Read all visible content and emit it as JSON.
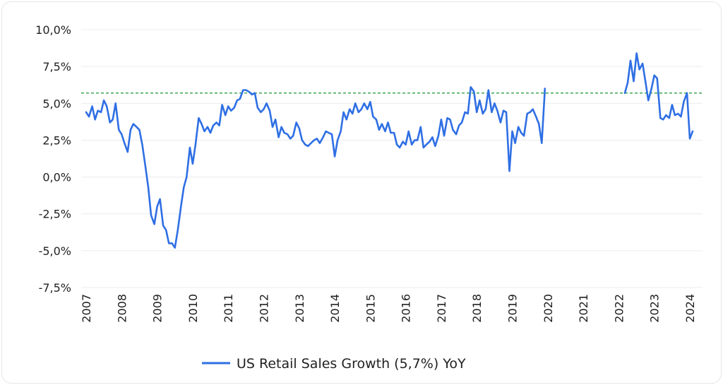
{
  "chart_data": {
    "type": "line",
    "title": "",
    "xlabel": "",
    "ylabel": "",
    "ylim": [
      -7.5,
      10.0
    ],
    "xlim": [
      2007.0,
      2024.25
    ],
    "y_ticks": [
      -7.5,
      -5.0,
      -2.5,
      0.0,
      2.5,
      5.0,
      7.5,
      10.0
    ],
    "y_tick_labels": [
      "-7,5%",
      "-5,0%",
      "-2,5%",
      "0,0%",
      "2,5%",
      "5,0%",
      "7,5%",
      "10,0%"
    ],
    "x_ticks": [
      2007,
      2008,
      2009,
      2010,
      2011,
      2012,
      2013,
      2014,
      2015,
      2016,
      2017,
      2018,
      2019,
      2020,
      2021,
      2022,
      2023,
      2024
    ],
    "x_tick_labels": [
      "2007",
      "2008",
      "2009",
      "2010",
      "2011",
      "2012",
      "2013",
      "2014",
      "2015",
      "2016",
      "2017",
      "2018",
      "2019",
      "2020",
      "2021",
      "2022",
      "2023",
      "2024"
    ],
    "legend": "bottom",
    "colors": {
      "series": "#2f6fe4",
      "reference": "#2ea043",
      "grid": "#ececec"
    },
    "reference_line": {
      "value": 5.7,
      "style": "dashed"
    },
    "series": [
      {
        "name": "US Retail Sales Growth (5,7%) YoY",
        "segments": [
          [
            [
              2007.0,
              4.4
            ],
            [
              2007.08,
              4.1
            ],
            [
              2007.17,
              4.8
            ],
            [
              2007.25,
              3.9
            ],
            [
              2007.33,
              4.5
            ],
            [
              2007.42,
              4.4
            ],
            [
              2007.5,
              5.2
            ],
            [
              2007.58,
              4.8
            ],
            [
              2007.67,
              3.7
            ],
            [
              2007.75,
              3.9
            ],
            [
              2007.83,
              5.0
            ],
            [
              2007.92,
              3.2
            ],
            [
              2008.0,
              2.9
            ],
            [
              2008.08,
              2.3
            ],
            [
              2008.17,
              1.7
            ],
            [
              2008.25,
              3.2
            ],
            [
              2008.33,
              3.6
            ],
            [
              2008.42,
              3.4
            ],
            [
              2008.5,
              3.2
            ],
            [
              2008.58,
              2.2
            ],
            [
              2008.67,
              0.7
            ],
            [
              2008.75,
              -0.7
            ],
            [
              2008.83,
              -2.6
            ],
            [
              2008.92,
              -3.2
            ],
            [
              2009.0,
              -2.0
            ],
            [
              2009.08,
              -1.5
            ],
            [
              2009.17,
              -3.3
            ],
            [
              2009.25,
              -3.6
            ],
            [
              2009.33,
              -4.5
            ],
            [
              2009.42,
              -4.5
            ],
            [
              2009.5,
              -4.8
            ],
            [
              2009.58,
              -3.6
            ],
            [
              2009.67,
              -2.0
            ],
            [
              2009.75,
              -0.7
            ],
            [
              2009.83,
              0.0
            ],
            [
              2009.92,
              2.0
            ],
            [
              2010.0,
              0.9
            ],
            [
              2010.08,
              2.2
            ],
            [
              2010.17,
              4.0
            ],
            [
              2010.25,
              3.6
            ],
            [
              2010.33,
              3.1
            ],
            [
              2010.42,
              3.4
            ],
            [
              2010.5,
              3.0
            ],
            [
              2010.58,
              3.5
            ],
            [
              2010.67,
              3.7
            ],
            [
              2010.75,
              3.5
            ],
            [
              2010.83,
              4.9
            ],
            [
              2010.92,
              4.2
            ],
            [
              2011.0,
              4.8
            ],
            [
              2011.08,
              4.5
            ],
            [
              2011.17,
              4.7
            ],
            [
              2011.25,
              5.2
            ],
            [
              2011.33,
              5.3
            ],
            [
              2011.42,
              5.9
            ],
            [
              2011.5,
              5.9
            ],
            [
              2011.58,
              5.8
            ],
            [
              2011.67,
              5.6
            ],
            [
              2011.75,
              5.7
            ],
            [
              2011.83,
              4.7
            ],
            [
              2011.92,
              4.4
            ],
            [
              2012.0,
              4.6
            ],
            [
              2012.08,
              5.0
            ],
            [
              2012.17,
              4.5
            ],
            [
              2012.25,
              3.4
            ],
            [
              2012.33,
              3.9
            ],
            [
              2012.42,
              2.7
            ],
            [
              2012.5,
              3.4
            ],
            [
              2012.58,
              3.0
            ],
            [
              2012.67,
              2.9
            ],
            [
              2012.75,
              2.6
            ],
            [
              2012.83,
              2.8
            ],
            [
              2012.92,
              3.7
            ],
            [
              2013.0,
              3.3
            ],
            [
              2013.08,
              2.5
            ],
            [
              2013.17,
              2.2
            ],
            [
              2013.25,
              2.1
            ],
            [
              2013.33,
              2.3
            ],
            [
              2013.42,
              2.5
            ],
            [
              2013.5,
              2.6
            ],
            [
              2013.58,
              2.3
            ],
            [
              2013.67,
              2.7
            ],
            [
              2013.75,
              3.1
            ],
            [
              2013.83,
              3.0
            ],
            [
              2013.92,
              2.9
            ],
            [
              2014.0,
              1.4
            ],
            [
              2014.08,
              2.5
            ],
            [
              2014.17,
              3.1
            ],
            [
              2014.25,
              4.4
            ],
            [
              2014.33,
              3.9
            ],
            [
              2014.42,
              4.6
            ],
            [
              2014.5,
              4.3
            ],
            [
              2014.58,
              5.0
            ],
            [
              2014.67,
              4.4
            ],
            [
              2014.75,
              4.6
            ],
            [
              2014.83,
              5.0
            ],
            [
              2014.92,
              4.6
            ],
            [
              2015.0,
              5.1
            ],
            [
              2015.08,
              4.1
            ],
            [
              2015.17,
              3.9
            ],
            [
              2015.25,
              3.2
            ],
            [
              2015.33,
              3.6
            ],
            [
              2015.42,
              3.1
            ],
            [
              2015.5,
              3.7
            ],
            [
              2015.58,
              3.0
            ],
            [
              2015.67,
              3.0
            ],
            [
              2015.75,
              2.2
            ],
            [
              2015.83,
              2.0
            ],
            [
              2015.92,
              2.4
            ],
            [
              2016.0,
              2.2
            ],
            [
              2016.08,
              3.1
            ],
            [
              2016.17,
              2.2
            ],
            [
              2016.25,
              2.5
            ],
            [
              2016.33,
              2.5
            ],
            [
              2016.42,
              3.4
            ],
            [
              2016.5,
              2.0
            ],
            [
              2016.58,
              2.2
            ],
            [
              2016.67,
              2.4
            ],
            [
              2016.75,
              2.7
            ],
            [
              2016.83,
              2.1
            ],
            [
              2016.92,
              2.8
            ],
            [
              2017.0,
              3.9
            ],
            [
              2017.08,
              2.8
            ],
            [
              2017.17,
              4.0
            ],
            [
              2017.25,
              3.9
            ],
            [
              2017.33,
              3.2
            ],
            [
              2017.42,
              2.9
            ],
            [
              2017.5,
              3.5
            ],
            [
              2017.58,
              3.7
            ],
            [
              2017.67,
              4.4
            ],
            [
              2017.75,
              4.3
            ],
            [
              2017.83,
              6.1
            ],
            [
              2017.92,
              5.8
            ],
            [
              2018.0,
              4.4
            ],
            [
              2018.08,
              5.2
            ],
            [
              2018.17,
              4.3
            ],
            [
              2018.25,
              4.6
            ],
            [
              2018.33,
              5.9
            ],
            [
              2018.42,
              4.4
            ],
            [
              2018.5,
              5.0
            ],
            [
              2018.58,
              4.5
            ],
            [
              2018.67,
              3.7
            ],
            [
              2018.75,
              4.5
            ],
            [
              2018.83,
              4.4
            ],
            [
              2018.92,
              0.4
            ],
            [
              2019.0,
              3.1
            ],
            [
              2019.08,
              2.3
            ],
            [
              2019.17,
              3.4
            ],
            [
              2019.25,
              3.0
            ],
            [
              2019.33,
              2.8
            ],
            [
              2019.42,
              4.3
            ],
            [
              2019.5,
              4.4
            ],
            [
              2019.58,
              4.6
            ],
            [
              2019.67,
              4.1
            ],
            [
              2019.75,
              3.6
            ],
            [
              2019.83,
              2.3
            ],
            [
              2019.92,
              6.0
            ]
          ],
          [
            [
              2022.17,
              5.7
            ],
            [
              2022.25,
              6.4
            ],
            [
              2022.33,
              7.9
            ],
            [
              2022.42,
              6.5
            ],
            [
              2022.5,
              8.4
            ],
            [
              2022.58,
              7.3
            ],
            [
              2022.67,
              7.7
            ],
            [
              2022.75,
              6.5
            ],
            [
              2022.83,
              5.2
            ],
            [
              2022.92,
              6.0
            ],
            [
              2023.0,
              6.9
            ],
            [
              2023.08,
              6.7
            ],
            [
              2023.17,
              4.0
            ],
            [
              2023.25,
              3.9
            ],
            [
              2023.33,
              4.2
            ],
            [
              2023.42,
              4.0
            ],
            [
              2023.5,
              4.9
            ],
            [
              2023.58,
              4.2
            ],
            [
              2023.67,
              4.3
            ],
            [
              2023.75,
              4.1
            ],
            [
              2023.83,
              5.1
            ],
            [
              2023.92,
              5.7
            ],
            [
              2024.0,
              2.6
            ],
            [
              2024.08,
              3.1
            ]
          ]
        ]
      }
    ]
  }
}
